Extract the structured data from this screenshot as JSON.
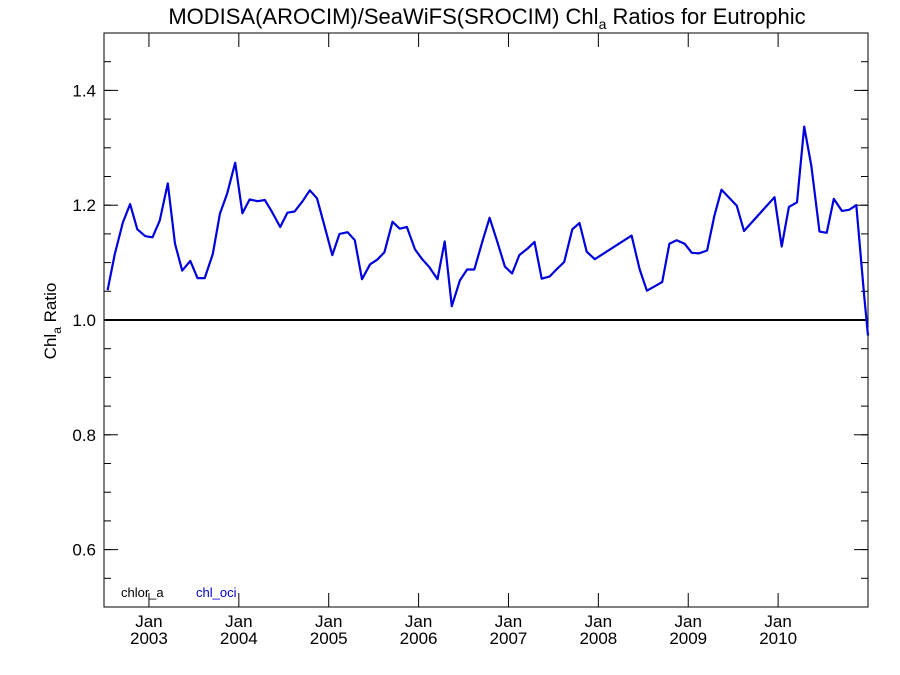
{
  "chart_data": {
    "type": "line",
    "title": {
      "main": "MODISA(AROCIM)/SeaWiFS(SROCIM)  Chl",
      "sub": "a",
      "rest": " Ratios for Eutrophic"
    },
    "ylabel": {
      "main": "Chl",
      "sub": "a",
      "rest": " Ratio"
    },
    "xlabel": "",
    "ylim": [
      0.5,
      1.5
    ],
    "xlim": [
      2002.5,
      2011.0
    ],
    "yticks": [
      {
        "value": 0.6,
        "label": "0.6"
      },
      {
        "value": 0.8,
        "label": "0.8"
      },
      {
        "value": 1.0,
        "label": "1.0"
      },
      {
        "value": 1.2,
        "label": "1.2"
      },
      {
        "value": 1.4,
        "label": "1.4"
      }
    ],
    "xticks": [
      {
        "value": 2003.0,
        "month": "Jan",
        "year": "2003"
      },
      {
        "value": 2004.0,
        "month": "Jan",
        "year": "2004"
      },
      {
        "value": 2005.0,
        "month": "Jan",
        "year": "2005"
      },
      {
        "value": 2006.0,
        "month": "Jan",
        "year": "2006"
      },
      {
        "value": 2007.0,
        "month": "Jan",
        "year": "2007"
      },
      {
        "value": 2008.0,
        "month": "Jan",
        "year": "2008"
      },
      {
        "value": 2009.0,
        "month": "Jan",
        "year": "2009"
      },
      {
        "value": 2010.0,
        "month": "Jan",
        "year": "2010"
      }
    ],
    "reference_line": {
      "y": 1.0,
      "color": "#000000"
    },
    "legend": [
      {
        "label": "chlor_a",
        "color": "#000000"
      },
      {
        "label": "chl_oci",
        "color": "#0000cc"
      }
    ],
    "series": [
      {
        "name": "chl_oci",
        "color": "#0000dd",
        "x": [
          2002.54,
          2002.62,
          2002.71,
          2002.79,
          2002.87,
          2002.96,
          2003.04,
          2003.12,
          2003.21,
          2003.29,
          2003.37,
          2003.46,
          2003.54,
          2003.62,
          2003.71,
          2003.79,
          2003.87,
          2003.96,
          2004.04,
          2004.12,
          2004.21,
          2004.29,
          2004.37,
          2004.46,
          2004.54,
          2004.62,
          2004.71,
          2004.79,
          2004.87,
          2004.96,
          2005.04,
          2005.12,
          2005.21,
          2005.29,
          2005.37,
          2005.46,
          2005.54,
          2005.62,
          2005.71,
          2005.79,
          2005.87,
          2005.96,
          2006.04,
          2006.12,
          2006.21,
          2006.29,
          2006.37,
          2006.46,
          2006.54,
          2006.62,
          2006.71,
          2006.79,
          2006.87,
          2006.96,
          2007.04,
          2007.12,
          2007.21,
          2007.29,
          2007.37,
          2007.46,
          2007.54,
          2007.62,
          2007.71,
          2007.79,
          2007.87,
          2007.96,
          2008.37,
          2008.46,
          2008.54,
          2008.71,
          2008.79,
          2008.87,
          2008.96,
          2009.04,
          2009.12,
          2009.21,
          2009.29,
          2009.37,
          2009.54,
          2009.62,
          2009.96,
          2010.04,
          2010.12,
          2010.21,
          2010.29,
          2010.37,
          2010.46,
          2010.54,
          2010.62,
          2010.71,
          2010.79,
          2010.87,
          2010.96,
          2011.0
        ],
        "y": [
          1.052,
          1.115,
          1.17,
          1.202,
          1.158,
          1.146,
          1.144,
          1.173,
          1.238,
          1.133,
          1.086,
          1.103,
          1.073,
          1.073,
          1.115,
          1.185,
          1.22,
          1.274,
          1.186,
          1.21,
          1.207,
          1.209,
          1.188,
          1.162,
          1.187,
          1.189,
          1.207,
          1.226,
          1.212,
          1.16,
          1.113,
          1.15,
          1.153,
          1.139,
          1.071,
          1.097,
          1.105,
          1.118,
          1.171,
          1.159,
          1.162,
          1.123,
          1.106,
          1.092,
          1.071,
          1.137,
          1.024,
          1.069,
          1.088,
          1.088,
          1.137,
          1.178,
          1.139,
          1.093,
          1.081,
          1.113,
          1.124,
          1.136,
          1.072,
          1.076,
          1.089,
          1.101,
          1.158,
          1.169,
          1.119,
          1.106,
          1.147,
          1.088,
          1.051,
          1.066,
          1.133,
          1.139,
          1.133,
          1.117,
          1.116,
          1.121,
          1.181,
          1.227,
          1.199,
          1.155,
          1.214,
          1.128,
          1.197,
          1.205,
          1.337,
          1.268,
          1.154,
          1.152,
          1.211,
          1.19,
          1.192,
          1.2,
          1.038,
          0.973
        ]
      }
    ]
  }
}
